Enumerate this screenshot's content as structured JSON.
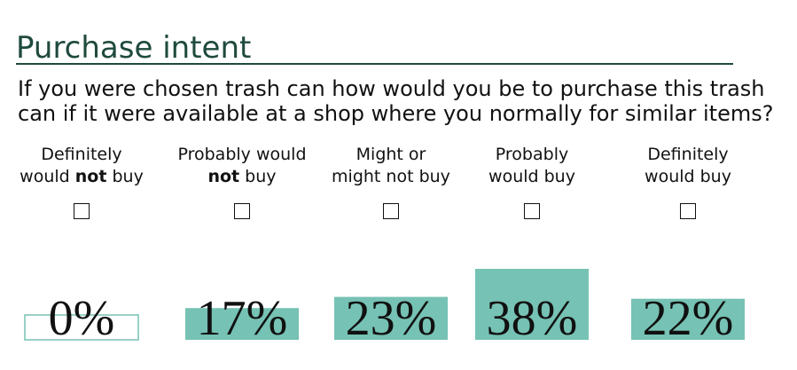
{
  "title": "Purchase intent",
  "question": "If you were chosen trash can how would you be to purchase this trash can if it were available at a shop where you normally for similar items?",
  "colors": {
    "title": "#1f4a3e",
    "rule": "#1f4a3e",
    "bar": "#76c2b4",
    "bar_outline": "#76c2b4",
    "value_text": "#111111"
  },
  "options": [
    {
      "line1": "Definitely",
      "line2_pre": "would ",
      "line2_bold": "not",
      "line2_post": " buy"
    },
    {
      "line1": "Probably would",
      "line2_pre": "",
      "line2_bold": "not",
      "line2_post": " buy"
    },
    {
      "line1": "Might or",
      "line2_pre": "might not buy",
      "line2_bold": "",
      "line2_post": ""
    },
    {
      "line1": "Probably",
      "line2_pre": "would buy",
      "line2_bold": "",
      "line2_post": ""
    },
    {
      "line1": "Definitely",
      "line2_pre": "would buy",
      "line2_bold": "",
      "line2_post": ""
    }
  ],
  "chart_data": {
    "type": "bar",
    "categories": [
      "Definitely would not buy",
      "Probably would not buy",
      "Might or might not buy",
      "Probably would buy",
      "Definitely would buy"
    ],
    "values": [
      0,
      17,
      23,
      38,
      22
    ],
    "value_labels": [
      "0%",
      "17%",
      "23%",
      "38%",
      "22%"
    ],
    "unit": "%",
    "ylim": [
      0,
      38
    ],
    "grid": false,
    "legend": "none"
  }
}
